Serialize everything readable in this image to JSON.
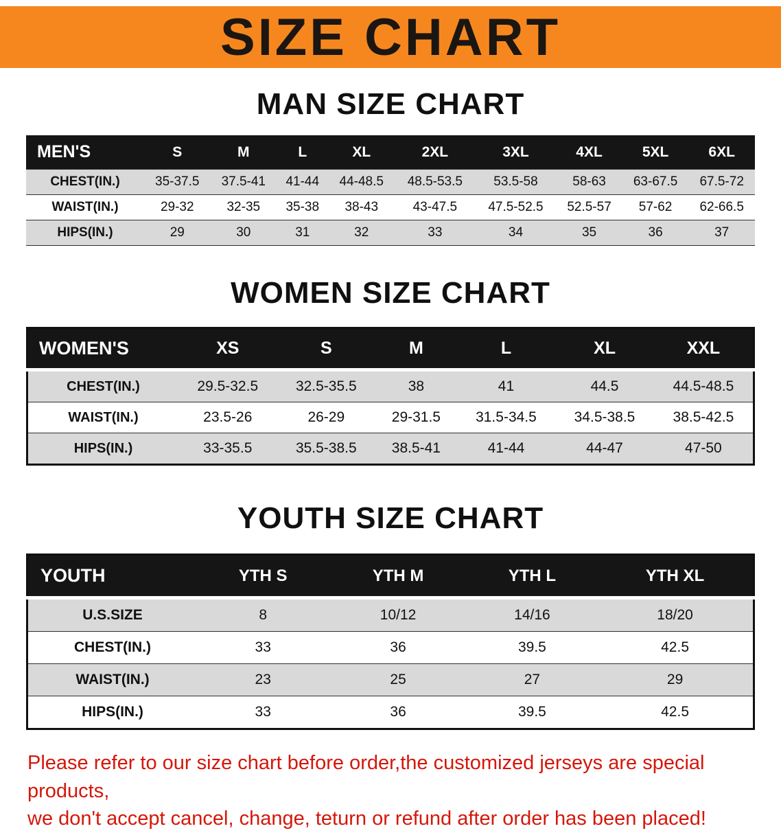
{
  "banner": {
    "title": "SIZE CHART"
  },
  "sections": {
    "men": {
      "heading": "MAN SIZE CHART"
    },
    "women": {
      "heading": "WOMEN SIZE CHART"
    },
    "youth": {
      "heading": "YOUTH SIZE CHART"
    }
  },
  "tables": {
    "men": {
      "header": [
        "MEN'S",
        "S",
        "M",
        "L",
        "XL",
        "2XL",
        "3XL",
        "4XL",
        "5XL",
        "6XL"
      ],
      "rows": [
        {
          "label": "CHEST(IN.)",
          "values": [
            "35-37.5",
            "37.5-41",
            "41-44",
            "44-48.5",
            "48.5-53.5",
            "53.5-58",
            "58-63",
            "63-67.5",
            "67.5-72"
          ]
        },
        {
          "label": "WAIST(IN.)",
          "values": [
            "29-32",
            "32-35",
            "35-38",
            "38-43",
            "43-47.5",
            "47.5-52.5",
            "52.5-57",
            "57-62",
            "62-66.5"
          ]
        },
        {
          "label": "HIPS(IN.)",
          "values": [
            "29",
            "30",
            "31",
            "32",
            "33",
            "34",
            "35",
            "36",
            "37"
          ]
        }
      ]
    },
    "women": {
      "header": [
        "WOMEN'S",
        "XS",
        "S",
        "M",
        "L",
        "XL",
        "XXL"
      ],
      "rows": [
        {
          "label": "CHEST(IN.)",
          "values": [
            "29.5-32.5",
            "32.5-35.5",
            "38",
            "41",
            "44.5",
            "44.5-48.5"
          ]
        },
        {
          "label": "WAIST(IN.)",
          "values": [
            "23.5-26",
            "26-29",
            "29-31.5",
            "31.5-34.5",
            "34.5-38.5",
            "38.5-42.5"
          ]
        },
        {
          "label": "HIPS(IN.)",
          "values": [
            "33-35.5",
            "35.5-38.5",
            "38.5-41",
            "41-44",
            "44-47",
            "47-50"
          ]
        }
      ]
    },
    "youth": {
      "header": [
        "YOUTH",
        "YTH S",
        "YTH M",
        "YTH L",
        "YTH XL"
      ],
      "rows": [
        {
          "label": "U.S.SIZE",
          "values": [
            "8",
            "10/12",
            "14/16",
            "18/20"
          ]
        },
        {
          "label": "CHEST(IN.)",
          "values": [
            "33",
            "36",
            "39.5",
            "42.5"
          ]
        },
        {
          "label": "WAIST(IN.)",
          "values": [
            "23",
            "25",
            "27",
            "29"
          ]
        },
        {
          "label": "HIPS(IN.)",
          "values": [
            "33",
            "36",
            "39.5",
            "42.5"
          ]
        }
      ]
    }
  },
  "disclaimer": {
    "line1": "Please refer to our size chart before order,the customized jerseys are special products,",
    "line2": "we don't accept cancel, change, teturn or refund after order has been placed!"
  },
  "colors": {
    "banner_orange": "#f6871f",
    "header_black": "#151515",
    "row_gray": "#d9d9d9",
    "disclaimer_red": "#d4170a"
  }
}
